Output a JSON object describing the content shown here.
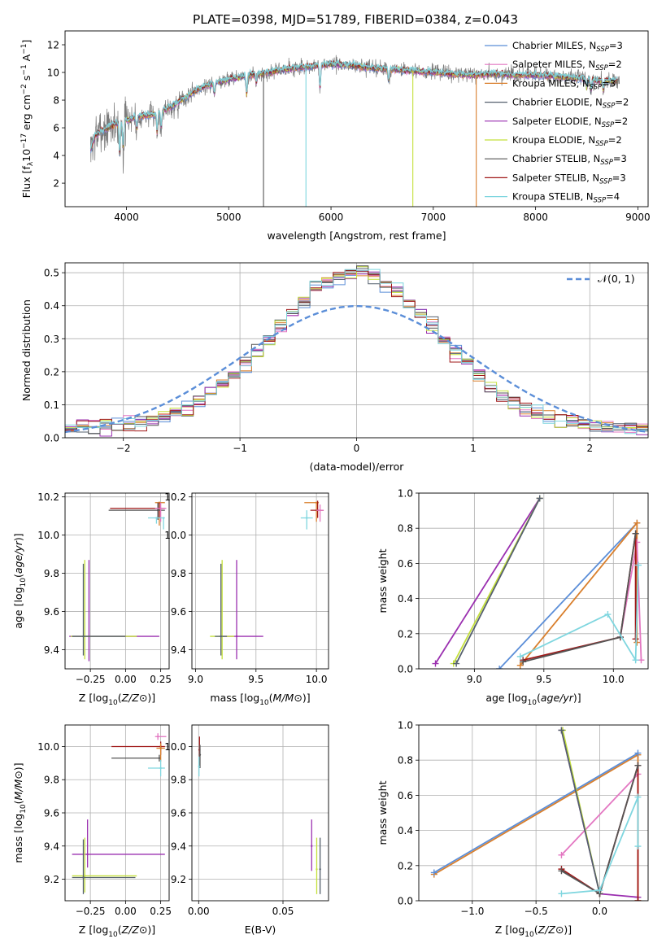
{
  "figure_title": "PLATE=0398, MJD=51789, FIBERID=0384, z=0.043",
  "colors": {
    "Chabrier MILES": "#5b8ed8",
    "Salpeter MILES": "#e377c2",
    "Kroupa MILES": "#d97f2c",
    "Chabrier ELODIE": "#55606e",
    "Salpeter ELODIE": "#9b30b0",
    "Kroupa ELODIE": "#c4e03a",
    "Chabrier STELIB": "#555555",
    "Salpeter STELIB": "#a01818",
    "Kroupa STELIB": "#7fd6df",
    "normal_curve": "#5b8ed8"
  },
  "chart_data": [
    {
      "type": "line",
      "panel": "spectrum",
      "xlabel": "wavelength [Angstrom, rest frame]",
      "ylabel": "Flux [f$_\\lambda$10$^{-17}$ erg cm$^{-2}$ s$^{-1}$ A$^{-1}$]",
      "ylabel_parts": [
        "Flux [f",
        "λ",
        "10",
        "−17",
        " erg cm",
        "−2",
        " s",
        "−1",
        " A",
        "−1",
        "]"
      ],
      "xlim": [
        3400,
        9100
      ],
      "ylim": [
        0.3,
        13
      ],
      "xticks": [
        4000,
        5000,
        6000,
        7000,
        8000,
        9000
      ],
      "yticks": [
        2,
        4,
        6,
        8,
        10,
        12
      ],
      "legend_location": "top-right",
      "legend": [
        {
          "label": "Chabrier MILES, N",
          "sub": "SSP",
          "tail": "=3"
        },
        {
          "label": "Salpeter MILES, N",
          "sub": "SSP",
          "tail": "=2"
        },
        {
          "label": "Kroupa MILES, N",
          "sub": "SSP",
          "tail": "=3"
        },
        {
          "label": "Chabrier ELODIE, N",
          "sub": "SSP",
          "tail": "=2"
        },
        {
          "label": "Salpeter ELODIE, N",
          "sub": "SSP",
          "tail": "=2"
        },
        {
          "label": "Kroupa ELODIE, N",
          "sub": "SSP",
          "tail": "=2"
        },
        {
          "label": "Chabrier STELIB, N",
          "sub": "SSP",
          "tail": "=3"
        },
        {
          "label": "Salpeter STELIB, N",
          "sub": "SSP",
          "tail": "=3"
        },
        {
          "label": "Kroupa STELIB, N",
          "sub": "SSP",
          "tail": "=4"
        }
      ],
      "continuum": {
        "x": [
          3650,
          3700,
          3800,
          3900,
          4000,
          4100,
          4200,
          4300,
          4400,
          4500,
          4600,
          4700,
          4800,
          4900,
          5000,
          5200,
          5400,
          5600,
          5800,
          6000,
          6200,
          6400,
          6600,
          6800,
          7000,
          7200,
          7400,
          7600,
          7800,
          8000,
          8200,
          8400,
          8600,
          8800
        ],
        "y": [
          4.4,
          5.5,
          5.9,
          6.3,
          6.5,
          6.8,
          6.9,
          7.0,
          7.4,
          7.8,
          8.3,
          8.8,
          9.1,
          9.3,
          9.5,
          9.8,
          10.0,
          10.3,
          10.4,
          10.6,
          10.5,
          10.3,
          10.2,
          10.1,
          10.0,
          9.9,
          9.8,
          9.9,
          9.8,
          9.8,
          9.7,
          9.6,
          9.4,
          9.4
        ]
      },
      "absorption_features": [
        {
          "x": 3934,
          "depth": 2.5
        },
        {
          "x": 3969,
          "depth": 2.0
        },
        {
          "x": 4101,
          "depth": 1.0
        },
        {
          "x": 4300,
          "depth": 1.5
        },
        {
          "x": 4340,
          "depth": 1.2
        },
        {
          "x": 4861,
          "depth": 0.8
        },
        {
          "x": 5175,
          "depth": 1.5
        },
        {
          "x": 5270,
          "depth": 0.7
        },
        {
          "x": 5892,
          "depth": 1.8
        },
        {
          "x": 6563,
          "depth": 0.9
        },
        {
          "x": 8498,
          "depth": 0.7
        },
        {
          "x": 8542,
          "depth": 0.9
        },
        {
          "x": 8662,
          "depth": 0.8
        }
      ],
      "masked_gaps": [
        5755,
        6800,
        7420
      ],
      "dropouts": [
        {
          "x": 5340,
          "to": 0.3,
          "series": "Chabrier STELIB"
        },
        {
          "x": 5755,
          "to": 0.3,
          "series": "Kroupa STELIB"
        },
        {
          "x": 6800,
          "to": 0.3,
          "series": "Kroupa ELODIE"
        },
        {
          "x": 7420,
          "to": 0.3,
          "series": "Kroupa MILES"
        }
      ]
    },
    {
      "type": "line",
      "panel": "residual_histogram",
      "xlabel": "(data-model)/error",
      "ylabel": "Normed distribution",
      "xlim": [
        -2.5,
        2.5
      ],
      "ylim": [
        0,
        0.53
      ],
      "xticks": [
        -2,
        -1,
        0,
        1,
        2
      ],
      "yticks": [
        0.0,
        0.1,
        0.2,
        0.3,
        0.4,
        0.5
      ],
      "xticklabels": [
        "−2",
        "−1",
        "0",
        "1",
        "2"
      ],
      "yticklabels": [
        "0.0",
        "0.1",
        "0.2",
        "0.3",
        "0.4",
        "0.5"
      ],
      "legend_location": "top-right",
      "legend": [
        "𝒩(0, 1)"
      ],
      "grid": true,
      "bin_width": 0.1,
      "normal_curve": {
        "mean": 0,
        "sigma": 1
      }
    },
    {
      "type": "scatter",
      "panel": "age_vs_Z",
      "xlabel": "Z [log10(Z/Z⊙)]",
      "ylabel": "age [log10(age/yr)]",
      "xlim": [
        -0.43,
        0.31
      ],
      "ylim": [
        9.3,
        10.22
      ],
      "xticks": [
        -0.25,
        0.0,
        0.25
      ],
      "xticklabels": [
        "−0.25",
        "0.00",
        "0.25"
      ],
      "yticks": [
        9.4,
        9.6,
        9.8,
        10.0,
        10.2
      ],
      "yticklabels": [
        "9.4",
        "9.6",
        "9.8",
        "10.0",
        "10.2"
      ],
      "grid": true,
      "points": [
        {
          "series": "Kroupa MILES",
          "x": 0.24,
          "y": 10.17,
          "xerr": [
            0.03,
            0.04
          ],
          "yerr": [
            0.12,
            0.0
          ]
        },
        {
          "series": "Salpeter STELIB",
          "x": 0.24,
          "y": 10.14,
          "xerr": [
            0.35,
            0.04
          ],
          "yerr": [
            0.05,
            0.03
          ]
        },
        {
          "series": "Chabrier STELIB",
          "x": 0.23,
          "y": 10.13,
          "xerr": [
            0.35,
            0.05
          ],
          "yerr": [
            0.05,
            0.04
          ]
        },
        {
          "series": "Salpeter MILES",
          "x": 0.25,
          "y": 10.14,
          "xerr": [
            0.04,
            0.04
          ],
          "yerr": [
            0.07,
            0.03
          ]
        },
        {
          "series": "Kroupa STELIB",
          "x": 0.22,
          "y": 10.09,
          "xerr": [
            0.06,
            0.06
          ],
          "yerr": [
            0.03,
            0.0
          ]
        },
        {
          "series": "Kroupa STELIB",
          "x": 0.27,
          "y": 10.09,
          "xerr": [
            0.0,
            0.0
          ],
          "yerr": [
            0.06,
            0.0
          ]
        },
        {
          "series": "Salpeter ELODIE",
          "x": -0.26,
          "y": 9.47,
          "xerr": [
            0.14,
            0.5
          ],
          "yerr": [
            0.13,
            0.4
          ]
        },
        {
          "series": "Kroupa ELODIE",
          "x": -0.29,
          "y": 9.47,
          "xerr": [
            0.1,
            0.37
          ],
          "yerr": [
            0.12,
            0.4
          ]
        },
        {
          "series": "Chabrier ELODIE",
          "x": -0.3,
          "y": 9.47,
          "xerr": [
            0.08,
            0.3
          ],
          "yerr": [
            0.1,
            0.38
          ]
        }
      ]
    },
    {
      "type": "scatter",
      "panel": "age_vs_mass",
      "xlabel": "mass [log10(M/M⊙)]",
      "xlim": [
        8.97,
        10.1
      ],
      "ylim": [
        9.3,
        10.22
      ],
      "xticks": [
        9.0,
        9.5,
        10.0
      ],
      "xticklabels": [
        "9.0",
        "9.5",
        "10.0"
      ],
      "yticks": [
        9.4,
        9.6,
        9.8,
        10.0,
        10.2
      ],
      "yticklabels": [
        "9.4",
        "9.6",
        "9.8",
        "10.0",
        "10.2"
      ],
      "grid": true,
      "points": [
        {
          "series": "Kroupa MILES",
          "x": 10.0,
          "y": 10.17,
          "xerr": [
            0.1,
            0.02
          ],
          "yerr": [
            0.1,
            0.0
          ]
        },
        {
          "series": "Salpeter STELIB",
          "x": 10.01,
          "y": 10.13,
          "xerr": [
            0.06,
            0.05
          ],
          "yerr": [
            0.04,
            0.05
          ]
        },
        {
          "series": "Salpeter MILES",
          "x": 10.03,
          "y": 10.13,
          "xerr": [
            0.03,
            0.03
          ],
          "yerr": [
            0.06,
            0.03
          ]
        },
        {
          "series": "Kroupa STELIB",
          "x": 9.92,
          "y": 10.09,
          "xerr": [
            0.05,
            0.05
          ],
          "yerr": [
            0.06,
            0.04
          ]
        },
        {
          "series": "Salpeter ELODIE",
          "x": 9.34,
          "y": 9.47,
          "xerr": [
            0.12,
            0.22
          ],
          "yerr": [
            0.12,
            0.4
          ]
        },
        {
          "series": "Kroupa ELODIE",
          "x": 9.22,
          "y": 9.47,
          "xerr": [
            0.1,
            0.1
          ],
          "yerr": [
            0.12,
            0.4
          ]
        },
        {
          "series": "Chabrier ELODIE",
          "x": 9.21,
          "y": 9.47,
          "xerr": [
            0.05,
            0.05
          ],
          "yerr": [
            0.1,
            0.38
          ]
        }
      ]
    },
    {
      "type": "line",
      "panel": "mass_weight_vs_age",
      "xlabel": "age [log10(age/yr)]",
      "ylabel": "mass weight",
      "xlim": [
        8.6,
        10.25
      ],
      "ylim": [
        0,
        1.0
      ],
      "xticks": [
        9.0,
        9.5,
        10.0
      ],
      "xticklabels": [
        "9.0",
        "9.5",
        "10.0"
      ],
      "yticks": [
        0.0,
        0.2,
        0.4,
        0.6,
        0.8,
        1.0
      ],
      "yticklabels": [
        "0.0",
        "0.2",
        "0.4",
        "0.6",
        "0.8",
        "1.0"
      ],
      "grid": true,
      "series": [
        {
          "name": "Chabrier MILES",
          "x": [
            9.18,
            10.17
          ],
          "y": [
            0.0,
            0.83
          ]
        },
        {
          "name": "Kroupa MILES",
          "x": [
            9.33,
            10.17,
            10.17
          ],
          "y": [
            0.02,
            0.83,
            0.15
          ]
        },
        {
          "name": "Salpeter ELODIE",
          "x": [
            8.72,
            9.47
          ],
          "y": [
            0.03,
            0.97
          ]
        },
        {
          "name": "Kroupa ELODIE",
          "x": [
            8.85,
            9.47
          ],
          "y": [
            0.03,
            0.97
          ]
        },
        {
          "name": "Chabrier ELODIE",
          "x": [
            8.87,
            9.47
          ],
          "y": [
            0.03,
            0.97
          ]
        },
        {
          "name": "Salpeter MILES",
          "x": [
            10.05,
            10.17,
            10.2
          ],
          "y": [
            0.18,
            0.72,
            0.05
          ]
        },
        {
          "name": "Salpeter STELIB",
          "x": [
            9.35,
            10.05,
            10.16,
            10.16
          ],
          "y": [
            0.05,
            0.18,
            0.77,
            0.17
          ]
        },
        {
          "name": "Chabrier STELIB",
          "x": [
            9.35,
            10.05,
            10.16
          ],
          "y": [
            0.04,
            0.18,
            0.77
          ]
        },
        {
          "name": "Kroupa STELIB",
          "x": [
            9.33,
            9.96,
            10.16,
            10.18
          ],
          "y": [
            0.07,
            0.31,
            0.05,
            0.59
          ]
        }
      ]
    },
    {
      "type": "scatter",
      "panel": "mass_vs_Z",
      "xlabel": "Z [log10(Z/Z⊙)]",
      "ylabel": "mass [log10(M/M⊙)]",
      "xlim": [
        -0.43,
        0.31
      ],
      "ylim": [
        9.07,
        10.13
      ],
      "xticks": [
        -0.25,
        0.0,
        0.25
      ],
      "xticklabels": [
        "−0.25",
        "0.00",
        "0.25"
      ],
      "yticks": [
        9.2,
        9.4,
        9.6,
        9.8,
        10.0
      ],
      "yticklabels": [
        "9.2",
        "9.4",
        "9.6",
        "9.8",
        "10.0"
      ],
      "grid": true,
      "points": [
        {
          "series": "Salpeter MILES",
          "x": 0.23,
          "y": 10.06,
          "xerr": [
            0.02,
            0.06
          ],
          "yerr": [
            0.02,
            0.02
          ]
        },
        {
          "series": "Salpeter STELIB",
          "x": 0.25,
          "y": 10.0,
          "xerr": [
            0.35,
            0.03
          ],
          "yerr": [
            0.05,
            0.03
          ]
        },
        {
          "series": "Kroupa MILES",
          "x": 0.25,
          "y": 9.99,
          "xerr": [
            0.03,
            0.03
          ],
          "yerr": [
            0.08,
            0.03
          ]
        },
        {
          "series": "Chabrier STELIB",
          "x": 0.24,
          "y": 9.93,
          "xerr": [
            0.34,
            0.0
          ],
          "yerr": [
            0.02,
            0.02
          ]
        },
        {
          "series": "Kroupa STELIB",
          "x": 0.25,
          "y": 9.87,
          "xerr": [
            0.09,
            0.03
          ],
          "yerr": [
            0.05,
            0.05
          ]
        },
        {
          "series": "Salpeter ELODIE",
          "x": -0.27,
          "y": 9.35,
          "xerr": [
            0.11,
            0.55
          ],
          "yerr": [
            0.08,
            0.21
          ]
        },
        {
          "series": "Kroupa ELODIE",
          "x": -0.29,
          "y": 9.22,
          "xerr": [
            0.09,
            0.37
          ],
          "yerr": [
            0.1,
            0.23
          ]
        },
        {
          "series": "Chabrier ELODIE",
          "x": -0.3,
          "y": 9.21,
          "xerr": [
            0.08,
            0.37
          ],
          "yerr": [
            0.1,
            0.23
          ]
        }
      ]
    },
    {
      "type": "scatter",
      "panel": "mass_vs_EBV",
      "xlabel": "E(B-V)",
      "xlim": [
        -0.004,
        0.077
      ],
      "ylim": [
        9.07,
        10.13
      ],
      "xticks": [
        0.0,
        0.05
      ],
      "xticklabels": [
        "0.00",
        "0.05"
      ],
      "yticks": [
        9.2,
        9.4,
        9.6,
        9.8,
        10.0
      ],
      "yticklabels": [
        "9.2",
        "9.4",
        "9.6",
        "9.8",
        "10.0"
      ],
      "grid": true,
      "points": [
        {
          "series": "Salpeter STELIB",
          "x": 0.0005,
          "y": 9.98,
          "yerr": [
            0.1,
            0.08
          ]
        },
        {
          "series": "Chabrier STELIB",
          "x": 0.0008,
          "y": 9.95,
          "yerr": [
            0.08,
            0.06
          ]
        },
        {
          "series": "Kroupa STELIB",
          "x": 0.0002,
          "y": 9.88,
          "yerr": [
            0.06,
            0.06
          ]
        },
        {
          "series": "Salpeter ELODIE",
          "x": 0.067,
          "y": 9.4,
          "yerr": [
            0.15,
            0.16
          ]
        },
        {
          "series": "Kroupa ELODIE",
          "x": 0.07,
          "y": 9.26,
          "yerr": [
            0.15,
            0.19
          ]
        },
        {
          "series": "Chabrier ELODIE",
          "x": 0.072,
          "y": 9.26,
          "yerr": [
            0.15,
            0.19
          ]
        }
      ]
    },
    {
      "type": "line",
      "panel": "mass_weight_vs_Z",
      "xlabel": "Z [log10(Z/Z⊙)]",
      "ylabel": "mass weight",
      "xlim": [
        -1.42,
        0.38
      ],
      "ylim": [
        0,
        1.0
      ],
      "xticks": [
        -1.0,
        -0.5,
        0.0
      ],
      "xticklabels": [
        "−1.0",
        "−0.5",
        "0.0"
      ],
      "yticks": [
        0.0,
        0.2,
        0.4,
        0.6,
        0.8,
        1.0
      ],
      "yticklabels": [
        "0.0",
        "0.2",
        "0.4",
        "0.6",
        "0.8",
        "1.0"
      ],
      "grid": true,
      "series": [
        {
          "name": "Kroupa MILES",
          "x": [
            -1.3,
            0.3,
            0.3
          ],
          "y": [
            0.15,
            0.83,
            0.0
          ]
        },
        {
          "name": "Chabrier MILES",
          "x": [
            -1.3,
            0.3
          ],
          "y": [
            0.16,
            0.84
          ]
        },
        {
          "name": "Salpeter MILES",
          "x": [
            -0.3,
            0.3
          ],
          "y": [
            0.26,
            0.72
          ]
        },
        {
          "name": "Salpeter ELODIE",
          "x": [
            -0.3,
            0.0,
            0.3
          ],
          "y": [
            0.97,
            0.04,
            0.02
          ]
        },
        {
          "name": "Kroupa ELODIE",
          "x": [
            -0.29,
            0.0
          ],
          "y": [
            0.97,
            0.04
          ]
        },
        {
          "name": "Chabrier ELODIE",
          "x": [
            -0.3,
            0.0
          ],
          "y": [
            0.97,
            0.04
          ]
        },
        {
          "name": "Salpeter STELIB",
          "x": [
            -0.3,
            0.0,
            0.3,
            0.3
          ],
          "y": [
            0.18,
            0.04,
            0.77,
            0.0
          ]
        },
        {
          "name": "Chabrier STELIB",
          "x": [
            -0.3,
            0.0,
            0.3
          ],
          "y": [
            0.17,
            0.04,
            0.77
          ]
        },
        {
          "name": "Kroupa STELIB",
          "x": [
            -0.3,
            0.0,
            0.3,
            0.3
          ],
          "y": [
            0.04,
            0.06,
            0.59,
            0.31
          ]
        }
      ]
    }
  ]
}
